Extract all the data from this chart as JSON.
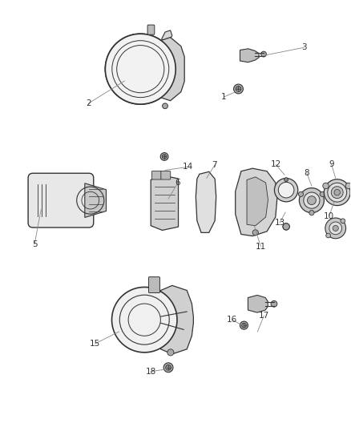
{
  "background_color": "#ffffff",
  "fig_width": 4.38,
  "fig_height": 5.33,
  "dpi": 100,
  "line_color": "#555555",
  "line_color_dark": "#333333",
  "text_color": "#333333",
  "font_size": 7.5,
  "leader_color": "#888888",
  "leader_lw": 0.6
}
